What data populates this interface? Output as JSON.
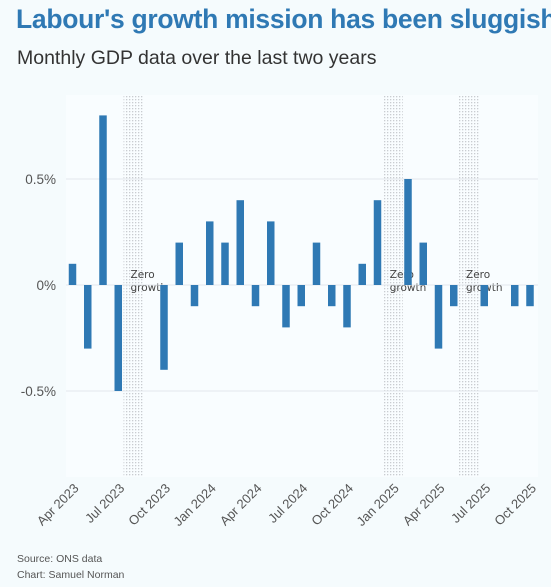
{
  "title": "Labour's growth mission has been sluggish",
  "subtitle": "Monthly GDP data over the last two years",
  "source": "Source: ONS data",
  "credit": "Chart: Samuel Norman",
  "colors": {
    "bar": "#2f79b4",
    "title": "#2f79b4",
    "background": "#f5fbfd",
    "band": "#c9ccd0"
  },
  "chart_data": {
    "type": "bar",
    "categories": [
      "2023-04",
      "2023-05",
      "2023-06",
      "2023-07",
      "2023-08",
      "2023-09",
      "2023-10",
      "2023-11",
      "2023-12",
      "2024-01",
      "2024-02",
      "2024-03",
      "2024-04",
      "2024-05",
      "2024-06",
      "2024-07",
      "2024-08",
      "2024-09",
      "2024-10",
      "2024-11",
      "2024-12",
      "2025-01",
      "2025-02",
      "2025-03",
      "2025-04",
      "2025-05",
      "2025-06",
      "2025-07",
      "2025-08",
      "2025-09",
      "2025-10"
    ],
    "values": [
      0.1,
      -0.3,
      0.8,
      -0.5,
      0,
      0,
      -0.4,
      0.2,
      -0.1,
      0.3,
      0.2,
      0.4,
      -0.1,
      0.3,
      -0.2,
      -0.1,
      0.2,
      -0.1,
      -0.2,
      0.1,
      0.4,
      0,
      0.5,
      0.2,
      -0.3,
      -0.1,
      0,
      -0.1,
      0,
      -0.1,
      -0.1
    ],
    "x_tick_labels": [
      {
        "category": "2023-04",
        "label": "Apr 2023"
      },
      {
        "category": "2023-07",
        "label": "Jul 2023"
      },
      {
        "category": "2023-10",
        "label": "Oct 2023"
      },
      {
        "category": "2024-01",
        "label": "Jan 2024"
      },
      {
        "category": "2024-04",
        "label": "Apr 2024"
      },
      {
        "category": "2024-07",
        "label": "Jul 2024"
      },
      {
        "category": "2024-10",
        "label": "Oct 2024"
      },
      {
        "category": "2025-01",
        "label": "Jan 2025"
      },
      {
        "category": "2025-04",
        "label": "Apr 2025"
      },
      {
        "category": "2025-07",
        "label": "Jul 2025"
      },
      {
        "category": "2025-10",
        "label": "Oct 2025"
      }
    ],
    "y_ticks": [
      {
        "value": 0.5,
        "label": "0.5%"
      },
      {
        "value": 0,
        "label": "0%"
      },
      {
        "value": -0.5,
        "label": "-0.5%"
      }
    ],
    "ylim": [
      -0.9,
      0.9
    ],
    "zero_growth_bands": [
      {
        "category": "2023-08",
        "label_lines": [
          "Zero",
          "growth"
        ]
      },
      {
        "category": "2025-01",
        "label_lines": [
          "Zero",
          "growth"
        ]
      },
      {
        "category": "2025-06",
        "label_lines": [
          "Zero",
          "growth"
        ]
      }
    ],
    "grid": "horizontal",
    "legend": "none",
    "xlabel": "",
    "ylabel": ""
  }
}
